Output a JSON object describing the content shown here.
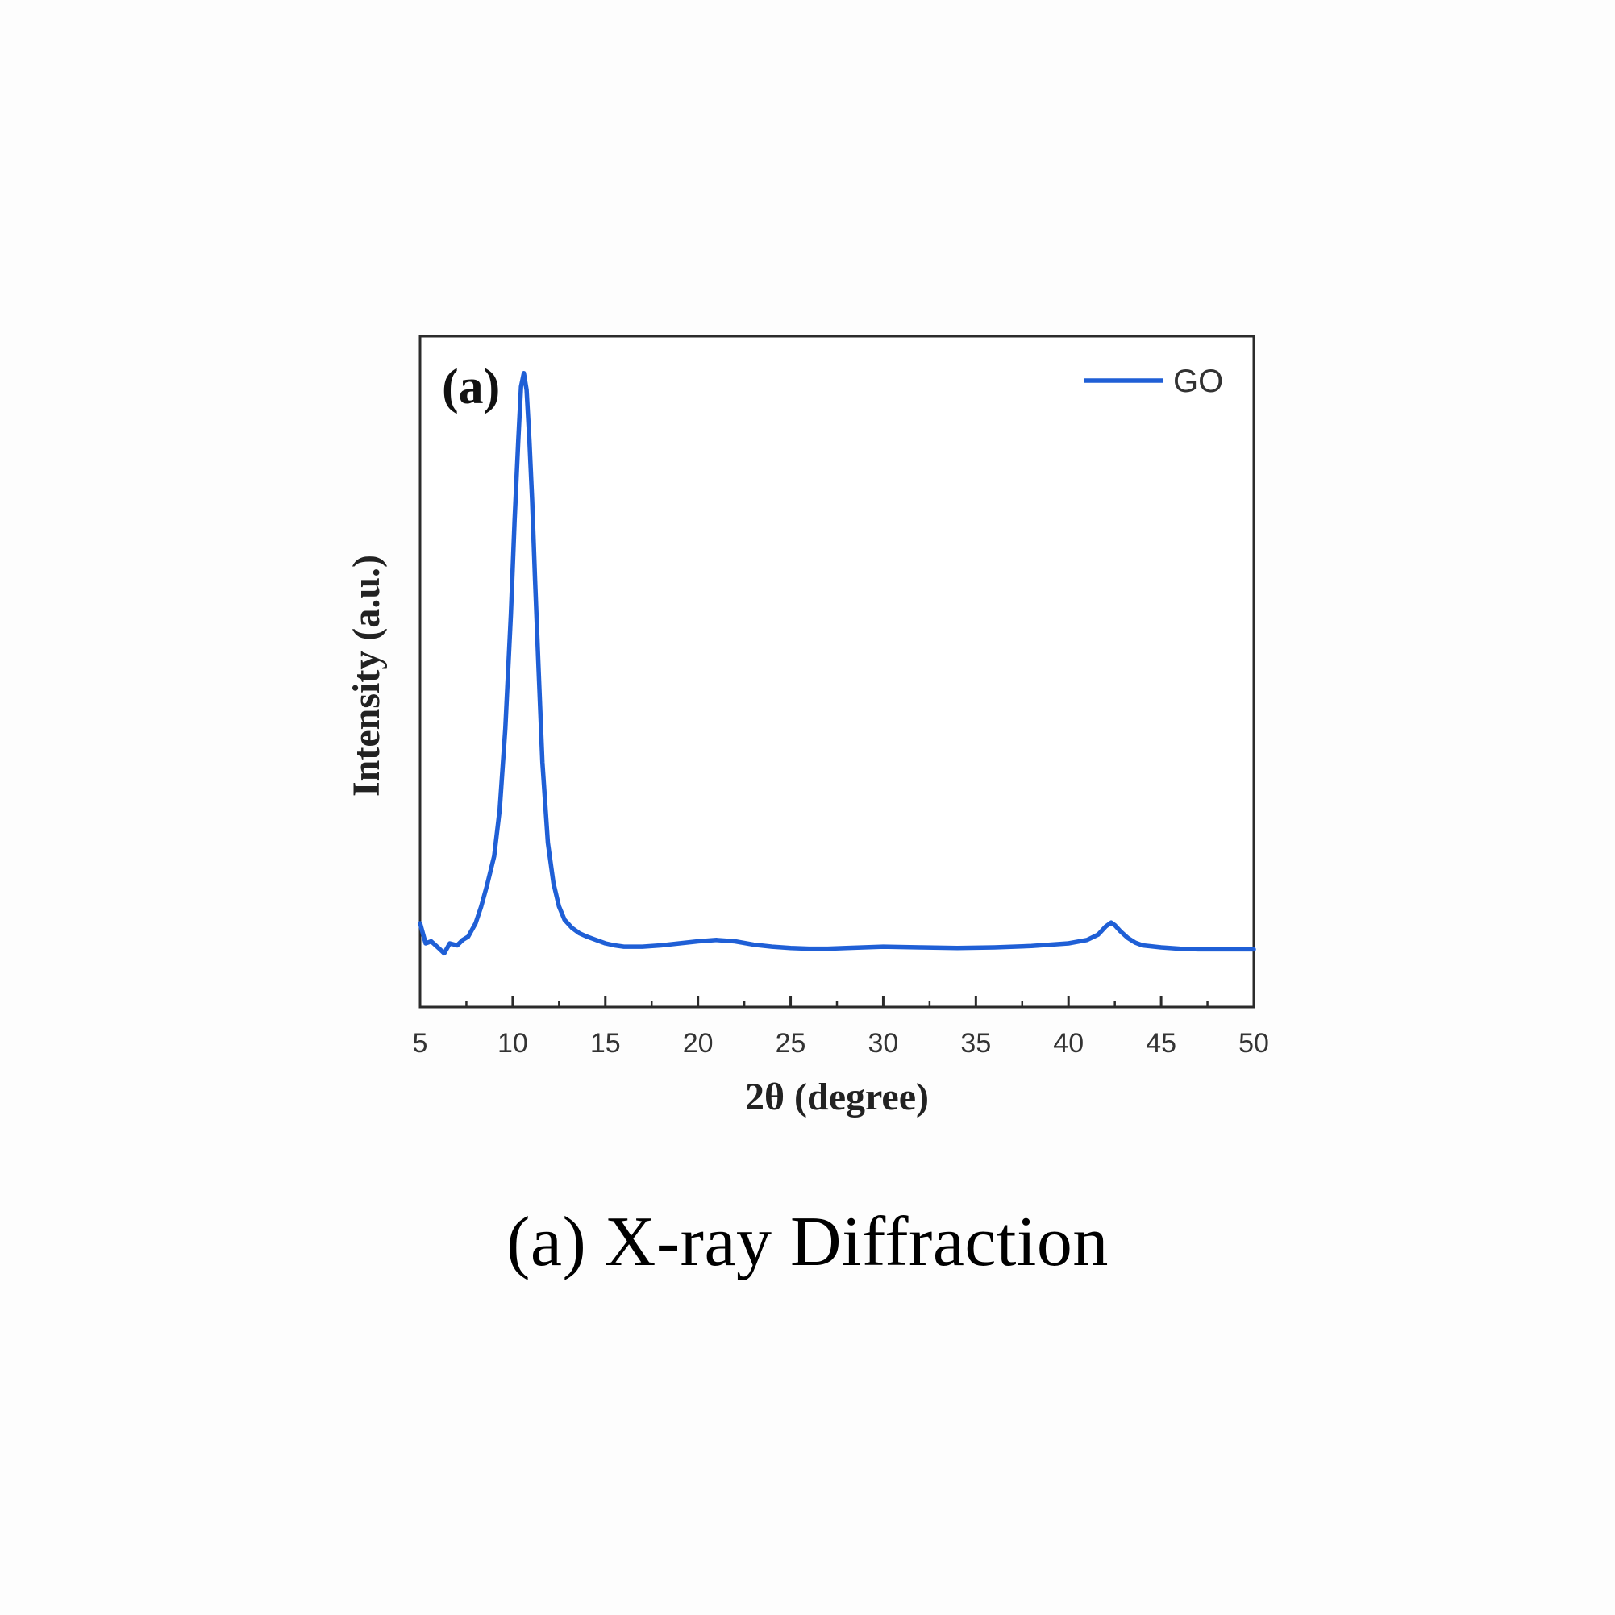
{
  "chart_data": {
    "type": "line",
    "panel_label": "(a)",
    "title": "",
    "xlabel": "2θ (degree)",
    "ylabel": "Intensity (a.u.)",
    "xlim": [
      5,
      50
    ],
    "ylim": [
      0,
      100
    ],
    "x_ticks": [
      5,
      10,
      15,
      20,
      25,
      30,
      35,
      40,
      45,
      50
    ],
    "x_tick_labels": [
      "5",
      "10",
      "15",
      "20",
      "25",
      "30",
      "35",
      "40",
      "45",
      "50"
    ],
    "y_ticks": [],
    "grid": false,
    "legend_position": "top-right",
    "series": [
      {
        "name": "GO",
        "color": "#1f5fd6",
        "x": [
          5.0,
          5.3,
          5.6,
          6.0,
          6.3,
          6.6,
          7.0,
          7.3,
          7.6,
          8.0,
          8.3,
          8.6,
          9.0,
          9.3,
          9.6,
          9.9,
          10.1,
          10.3,
          10.45,
          10.6,
          10.75,
          10.9,
          11.05,
          11.2,
          11.4,
          11.6,
          11.9,
          12.2,
          12.5,
          12.8,
          13.2,
          13.6,
          14.0,
          14.5,
          15.0,
          15.5,
          16.0,
          17.0,
          18.0,
          19.0,
          20.0,
          21.0,
          22.0,
          23.0,
          24.0,
          25.0,
          26.0,
          27.0,
          28.0,
          30.0,
          32.0,
          34.0,
          36.0,
          38.0,
          40.0,
          41.0,
          41.6,
          42.0,
          42.3,
          42.5,
          42.8,
          43.2,
          43.6,
          44.0,
          45.0,
          46.0,
          47.0,
          48.0,
          50.0
        ],
        "y": [
          12.5,
          9.5,
          9.8,
          8.8,
          8.0,
          9.5,
          9.2,
          10.0,
          10.5,
          12.5,
          15.0,
          18.0,
          22.5,
          29.5,
          41.5,
          58.5,
          72.5,
          84.5,
          92.5,
          94.5,
          92.0,
          84.5,
          75.5,
          64.0,
          50.0,
          36.5,
          24.5,
          18.5,
          15.0,
          13.0,
          11.8,
          11.0,
          10.5,
          10.0,
          9.5,
          9.2,
          9.0,
          9.0,
          9.2,
          9.5,
          9.8,
          10.0,
          9.8,
          9.3,
          9.0,
          8.8,
          8.7,
          8.7,
          8.8,
          9.0,
          8.9,
          8.8,
          8.9,
          9.1,
          9.5,
          10.0,
          10.8,
          12.0,
          12.6,
          12.2,
          11.3,
          10.3,
          9.6,
          9.2,
          8.9,
          8.7,
          8.6,
          8.6,
          8.6
        ]
      }
    ]
  },
  "caption": "(a) X-ray Diffraction"
}
